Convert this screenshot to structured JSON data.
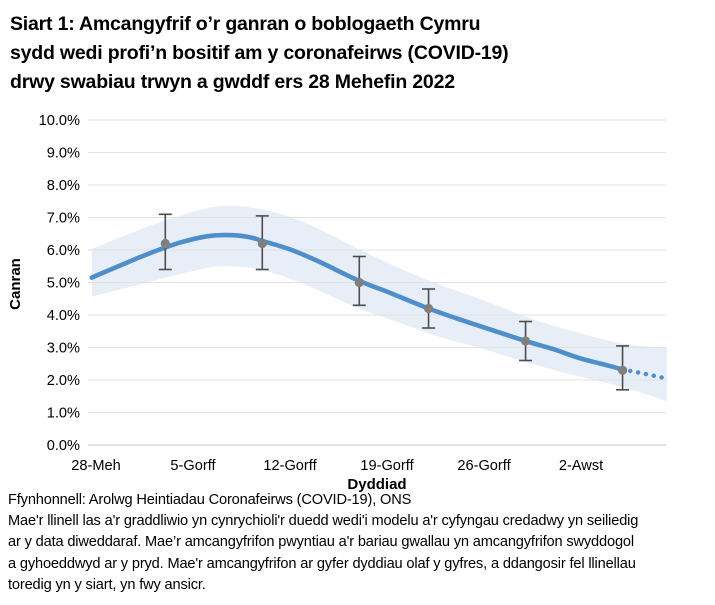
{
  "header": {
    "title_lines": [
      "Siart 1: Amcangyfrif o’r ganran o boblogaeth Cymru",
      "sydd wedi profi’n bositif am y coronafeirws (COVID-19)",
      "drwy swabiau trwyn a gwddf ers 28 Mehefin 2022"
    ]
  },
  "chart_data": {
    "type": "line",
    "title": "Siart 1: Amcangyfrif o’r ganran o boblogaeth Cymru sydd wedi profi’n bositif am y coronafeirws (COVID-19) drwy swabiau trwyn a gwddf ers 28 Mehefin 2022",
    "xlabel": "Dyddiad",
    "ylabel": "Canran",
    "ylim": [
      0,
      10
    ],
    "grid": true,
    "legend": false,
    "ytick_labels": [
      "0.0%",
      "1.0%",
      "2.0%",
      "3.0%",
      "4.0%",
      "5.0%",
      "6.0%",
      "7.0%",
      "8.0%",
      "9.0%",
      "10.0%"
    ],
    "xticks": [
      {
        "label": "28-Meh",
        "day": 0
      },
      {
        "label": "5-Gorff",
        "day": 7
      },
      {
        "label": "12-Gorff",
        "day": 14
      },
      {
        "label": "19-Gorff",
        "day": 21
      },
      {
        "label": "26-Gorff",
        "day": 28
      },
      {
        "label": "2-Awst",
        "day": 35
      }
    ],
    "series": [
      {
        "name": "modelled-trend",
        "style": "smooth-line",
        "points": [
          [
            -0.3,
            5.15
          ],
          [
            2,
            5.57
          ],
          [
            4,
            5.92
          ],
          [
            6,
            6.22
          ],
          [
            8,
            6.42
          ],
          [
            9.5,
            6.46
          ],
          [
            11,
            6.4
          ],
          [
            12,
            6.28
          ],
          [
            14,
            6.02
          ],
          [
            16,
            5.66
          ],
          [
            19,
            5.05
          ],
          [
            21,
            4.72
          ],
          [
            24,
            4.2
          ],
          [
            26,
            3.9
          ],
          [
            28,
            3.62
          ],
          [
            31,
            3.2
          ],
          [
            33,
            2.95
          ],
          [
            35,
            2.66
          ],
          [
            37,
            2.44
          ],
          [
            38,
            2.32
          ]
        ]
      },
      {
        "name": "dotted-tail",
        "style": "dotted-line",
        "points": [
          [
            38.55,
            2.28
          ],
          [
            39.7,
            2.18
          ],
          [
            40.9,
            2.07
          ]
        ]
      },
      {
        "name": "credible-band",
        "style": "band",
        "points": [
          [
            -0.3,
            4.57,
            6.03
          ],
          [
            3,
            4.92,
            6.6
          ],
          [
            6,
            5.25,
            7.05
          ],
          [
            9,
            5.5,
            7.35
          ],
          [
            12,
            5.38,
            7.25
          ],
          [
            15,
            4.95,
            6.85
          ],
          [
            19,
            4.2,
            6.02
          ],
          [
            22,
            3.75,
            5.42
          ],
          [
            25,
            3.3,
            4.9
          ],
          [
            28,
            2.95,
            4.45
          ],
          [
            31,
            2.55,
            3.95
          ],
          [
            34,
            2.2,
            3.55
          ],
          [
            38,
            1.78,
            3.12
          ],
          [
            41.2,
            1.35,
            3.0
          ]
        ]
      },
      {
        "name": "official-estimates",
        "style": "points-errorbars",
        "points": [
          {
            "day": 5,
            "value": 6.2,
            "lo": 5.4,
            "hi": 7.1
          },
          {
            "day": 12,
            "value": 6.2,
            "lo": 5.4,
            "hi": 7.05
          },
          {
            "day": 19,
            "value": 5.0,
            "lo": 4.3,
            "hi": 5.8
          },
          {
            "day": 24,
            "value": 4.2,
            "lo": 3.6,
            "hi": 4.8
          },
          {
            "day": 31,
            "value": 3.2,
            "lo": 2.6,
            "hi": 3.8
          },
          {
            "day": 38,
            "value": 2.3,
            "lo": 1.7,
            "hi": 3.05
          }
        ]
      }
    ],
    "colors": {
      "line": "#4e8fcb",
      "band": "#e7eef8",
      "marker": "#7f7f7f",
      "error_bar": "#4d4d4d",
      "grid": "#e2e2e2",
      "axis": "#c6c6c6"
    }
  },
  "footer": {
    "source": "Ffynhonnell: Arolwg Heintiadau Coronafeirws (COVID-19), ONS",
    "note_lines": [
      "Mae'r llinell las a'r graddliwio yn cynrychioli'r duedd wedi'i modelu a'r cyfyngau credadwy yn seiliedig",
      "ar y data diweddaraf. Mae’r amcangyfrifon pwyntiau a'r bariau gwallau yn amcangyfrifon swyddogol",
      "a gyhoeddwyd ar y pryd. Mae'r amcangyfrifon ar gyfer dyddiau olaf y gyfres, a ddangosir fel llinellau",
      "toredig yn y siart, yn fwy ansicr."
    ]
  }
}
